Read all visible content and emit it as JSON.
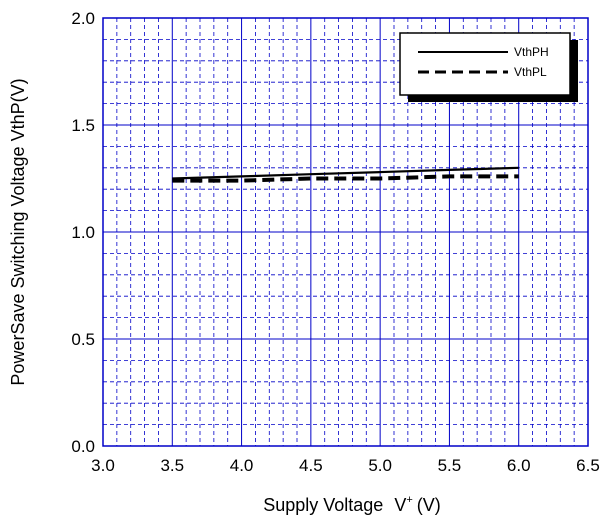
{
  "chart_data": {
    "type": "line",
    "xlabel": "Supply Voltage",
    "xlabel_symbol": "V",
    "xlabel_superscript": "+",
    "xlabel_unit": "(V)",
    "ylabel": "PowerSave Switching Voltage  VthP(V)",
    "xlim": [
      3.0,
      6.5
    ],
    "ylim": [
      0.0,
      2.0
    ],
    "xticks": [
      "3.0",
      "3.5",
      "4.0",
      "4.5",
      "5.0",
      "5.5",
      "6.0",
      "6.5"
    ],
    "yticks": [
      "0.0",
      "0.5",
      "1.0",
      "1.5",
      "2.0"
    ],
    "grid": true,
    "legend_position": "top-right",
    "colors": {
      "grid_major": "#0000c8",
      "grid_minor": "#0000c8",
      "series": "#000000"
    },
    "series": [
      {
        "name": "VthPH",
        "style": "solid",
        "x": [
          3.5,
          4.0,
          4.5,
          5.0,
          5.5,
          6.0
        ],
        "y": [
          1.25,
          1.26,
          1.27,
          1.28,
          1.29,
          1.3
        ]
      },
      {
        "name": "VthPL",
        "style": "dashed",
        "x": [
          3.5,
          4.0,
          4.5,
          5.0,
          5.5,
          6.0
        ],
        "y": [
          1.24,
          1.24,
          1.25,
          1.25,
          1.26,
          1.26
        ]
      }
    ]
  }
}
